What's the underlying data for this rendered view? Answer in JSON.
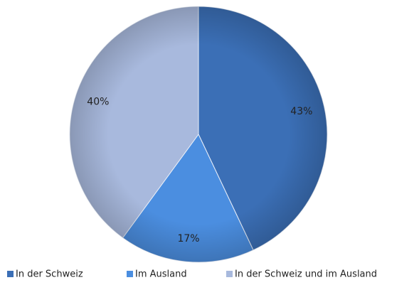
{
  "chart_data": {
    "type": "pie",
    "categories": [
      "In der Schweiz",
      "Im Ausland",
      "In der Schweiz und im Ausland"
    ],
    "values": [
      43,
      17,
      40
    ],
    "value_labels": [
      "43%",
      "17%",
      "40%"
    ],
    "colors": [
      "#3b6fb6",
      "#4b8ee0",
      "#a8b9dd"
    ],
    "legend": "bottom"
  }
}
